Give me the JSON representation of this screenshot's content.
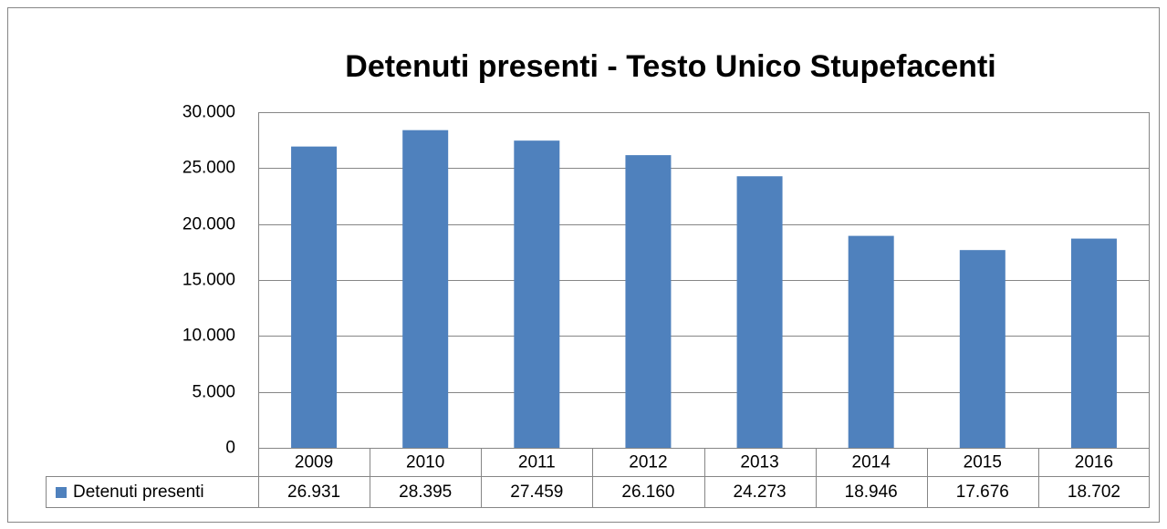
{
  "chart_data": {
    "type": "bar",
    "title": "Detenuti presenti - Testo Unico Stupefacenti",
    "categories": [
      "2009",
      "2010",
      "2011",
      "2012",
      "2013",
      "2014",
      "2015",
      "2016"
    ],
    "series": [
      {
        "name": "Detenuti presenti",
        "color": "#4f81bd",
        "values": [
          26931,
          28395,
          27459,
          26160,
          24273,
          18946,
          17676,
          18702
        ],
        "value_labels": [
          "26.931",
          "28.395",
          "27.459",
          "26.160",
          "24.273",
          "18.946",
          "17.676",
          "18.702"
        ]
      }
    ],
    "ylim": [
      0,
      30000
    ],
    "yticks": [
      0,
      {
        "value": 5000,
        "label": "5.000"
      },
      {
        "value": 10000,
        "label": "10.000"
      },
      {
        "value": 15000,
        "label": "15.000"
      },
      {
        "value": 20000,
        "label": "20.000"
      },
      {
        "value": 25000,
        "label": "25.000"
      },
      {
        "value": 30000,
        "label": "30.000"
      }
    ],
    "grid": true
  }
}
